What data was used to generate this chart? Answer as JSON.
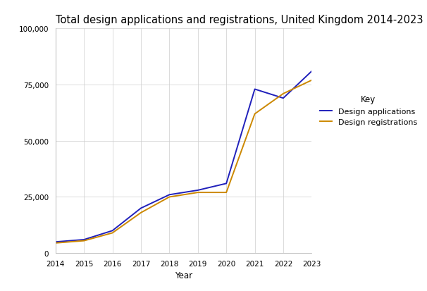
{
  "title": "Total design applications and registrations, United Kingdom 2014-2023",
  "xlabel": "Year",
  "ylabel": "",
  "years": [
    2014,
    2015,
    2016,
    2017,
    2018,
    2019,
    2020,
    2021,
    2022,
    2023
  ],
  "design_applications": [
    5000,
    6000,
    10000,
    20000,
    26000,
    28000,
    31000,
    73000,
    69000,
    81000
  ],
  "design_registrations": [
    4500,
    5500,
    9000,
    18000,
    25000,
    27000,
    27000,
    62000,
    71000,
    77000
  ],
  "app_color": "#2020bb",
  "reg_color": "#cc8800",
  "ylim": [
    0,
    100000
  ],
  "yticks": [
    0,
    25000,
    50000,
    75000,
    100000
  ],
  "ytick_labels": [
    "0",
    "25,000",
    "50,000",
    "75,000",
    "100,000"
  ],
  "legend_title": "Key",
  "legend_labels": [
    "Design applications",
    "Design registrations"
  ],
  "background_color": "#ffffff",
  "grid_color": "#cccccc",
  "title_fontsize": 10.5,
  "axis_fontsize": 8.5,
  "tick_fontsize": 7.5,
  "legend_fontsize": 8,
  "legend_title_fontsize": 8.5
}
